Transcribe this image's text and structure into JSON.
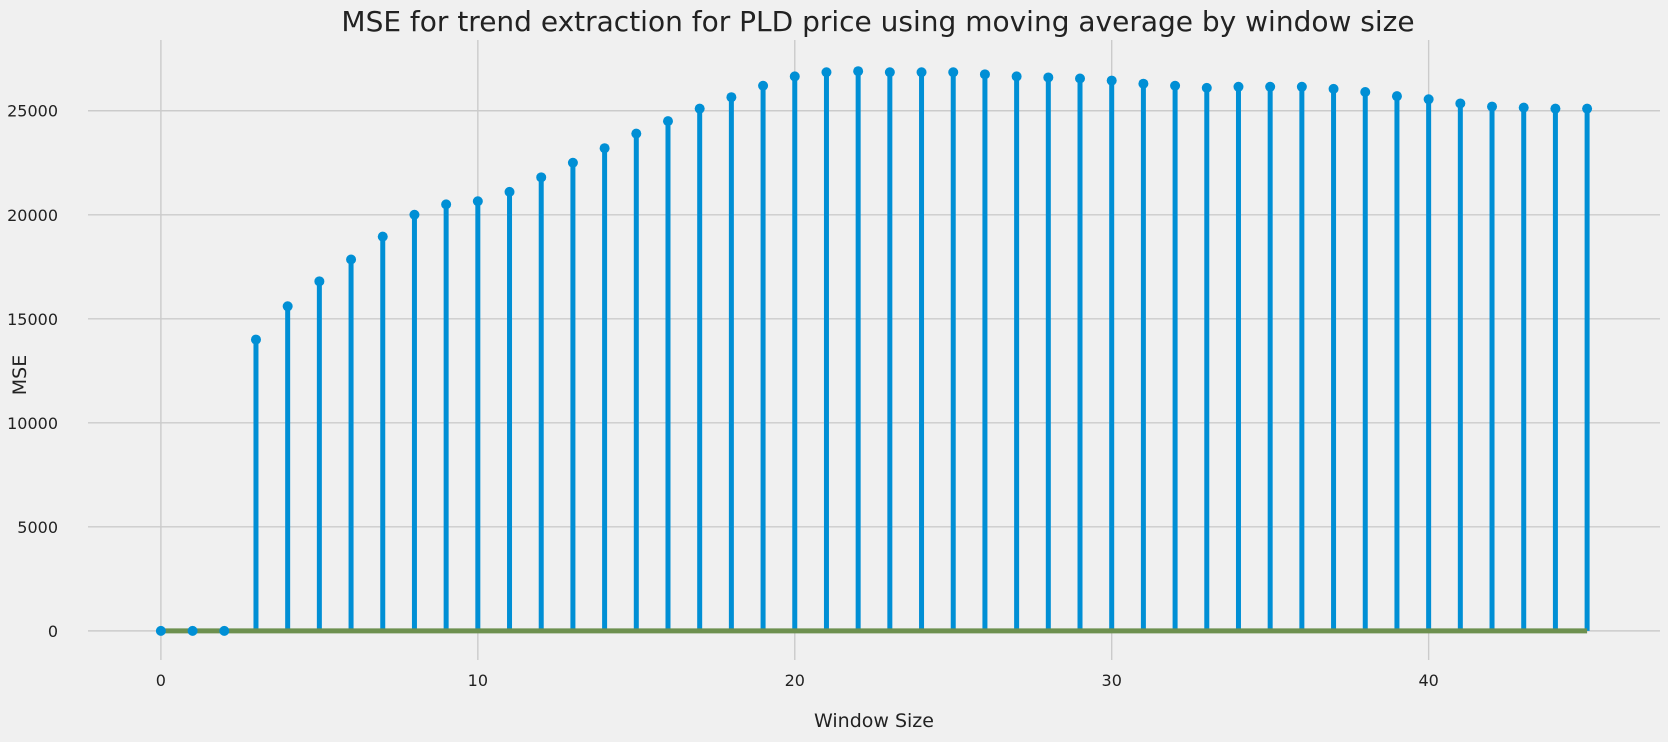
{
  "chart_data": {
    "type": "stem",
    "title": "MSE for trend extraction for PLD price using moving average by window size",
    "xlabel": "Window Size",
    "ylabel": "MSE",
    "x": [
      0,
      1,
      2,
      3,
      4,
      5,
      6,
      7,
      8,
      9,
      10,
      11,
      12,
      13,
      14,
      15,
      16,
      17,
      18,
      19,
      20,
      21,
      22,
      23,
      24,
      25,
      26,
      27,
      28,
      29,
      30,
      31,
      32,
      33,
      34,
      35,
      36,
      37,
      38,
      39,
      40,
      41,
      42,
      43,
      44,
      45
    ],
    "values": [
      0,
      0,
      0,
      14000,
      15600,
      16800,
      17850,
      18950,
      20000,
      20500,
      20650,
      21100,
      21800,
      22500,
      23200,
      23900,
      24500,
      25100,
      25650,
      26200,
      26650,
      26850,
      26900,
      26850,
      26850,
      26850,
      26750,
      26650,
      26600,
      26550,
      26450,
      26300,
      26200,
      26100,
      26150,
      26150,
      26150,
      26050,
      25900,
      25700,
      25550,
      25350,
      25200,
      25150,
      25100,
      25100
    ],
    "xlim": [
      -2.3,
      47.3
    ],
    "ylim": [
      -1400,
      28400
    ],
    "xticks": [
      0,
      10,
      20,
      30,
      40
    ],
    "yticks": [
      0,
      5000,
      10000,
      15000,
      20000,
      25000
    ],
    "grid": true,
    "colors": {
      "stem": "#008fd5",
      "baseline": "#6d904f",
      "background": "#f0f0f0",
      "grid": "#cbcbcb"
    }
  }
}
